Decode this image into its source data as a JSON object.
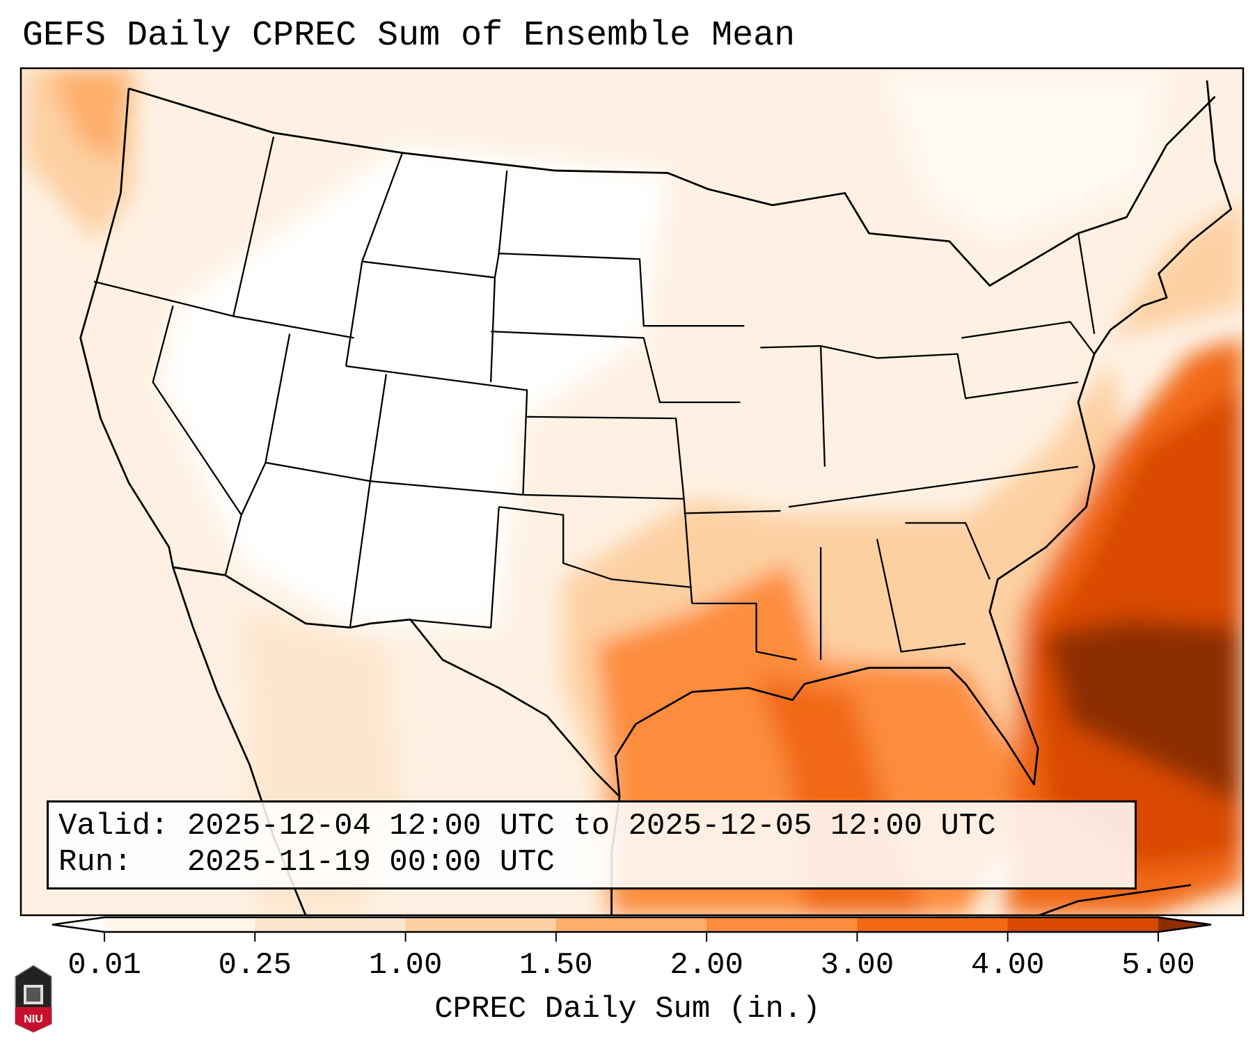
{
  "title": "GEFS Daily CPREC Sum of Ensemble Mean",
  "info": {
    "valid_label": "Valid:",
    "valid_value": "2025-12-04 12:00 UTC to 2025-12-05 12:00 UTC",
    "run_label": "Run:",
    "run_value": "2025-11-19 00:00 UTC"
  },
  "logo_text": "NIU",
  "chart_data": {
    "type": "heatmap",
    "title": "GEFS Daily CPREC Sum of Ensemble Mean",
    "colorbar": {
      "label": "CPREC Daily Sum (in.)",
      "ticks": [
        "0.01",
        "0.25",
        "1.00",
        "1.50",
        "2.00",
        "3.00",
        "4.00",
        "5.00"
      ],
      "levels": [
        0.01,
        0.25,
        1.0,
        1.5,
        2.0,
        3.0,
        4.0,
        5.0
      ],
      "colors": [
        "#fff5eb",
        "#fee6ce",
        "#fdd0a2",
        "#fdae6b",
        "#fd8d3c",
        "#f16913",
        "#d94801",
        "#8c2d04"
      ],
      "extend": "both",
      "orientation": "horizontal"
    },
    "regions": [
      {
        "name": "Western Atlantic off Southeast coast",
        "range_in": [
          3.0,
          5.0
        ]
      },
      {
        "name": "Gulf of Mexico",
        "range_in": [
          1.5,
          4.0
        ]
      },
      {
        "name": "Lower Mississippi Valley / Gulf Coast states",
        "range_in": [
          1.0,
          2.0
        ]
      },
      {
        "name": "Pacific Northwest coast",
        "range_in": [
          0.25,
          1.5
        ]
      },
      {
        "name": "Interior West / Plains",
        "range_in": [
          0.0,
          0.25
        ]
      }
    ]
  }
}
